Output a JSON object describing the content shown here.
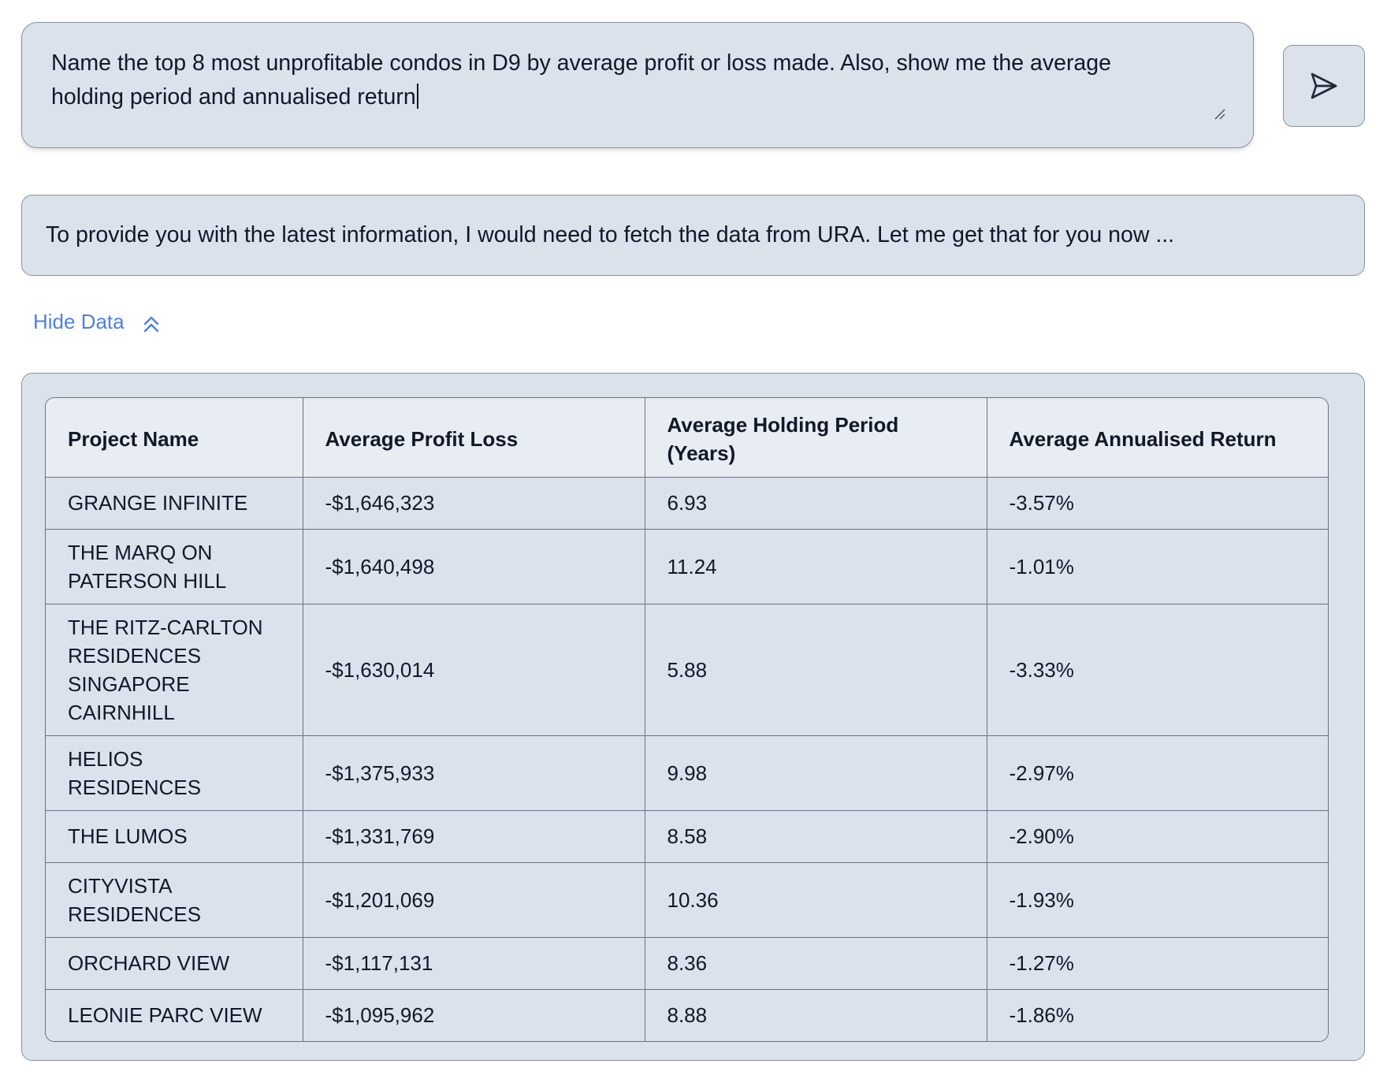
{
  "prompt": {
    "text": "Name the top 8 most unprofitable condos in D9 by average profit or loss made. Also, show me the average holding period and annualised return"
  },
  "send_button": {
    "icon": "send-icon"
  },
  "response": {
    "text": "To provide you with the latest information, I would need to fetch the data from URA. Let me get that for you now ..."
  },
  "toggle": {
    "label": "Hide Data",
    "icon": "double-chevron-up-icon"
  },
  "table": {
    "headers": [
      "Project Name",
      "Average Profit Loss",
      "Average Holding Period (Years)",
      "Average Annualised Return"
    ],
    "rows": [
      [
        "GRANGE INFINITE",
        "-$1,646,323",
        "6.93",
        "-3.57%"
      ],
      [
        "THE MARQ ON PATERSON HILL",
        "-$1,640,498",
        "11.24",
        "-1.01%"
      ],
      [
        "THE RITZ-CARLTON RESIDENCES SINGAPORE CAIRNHILL",
        "-$1,630,014",
        "5.88",
        "-3.33%"
      ],
      [
        "HELIOS RESIDENCES",
        "-$1,375,933",
        "9.98",
        "-2.97%"
      ],
      [
        "THE LUMOS",
        "-$1,331,769",
        "8.58",
        "-2.90%"
      ],
      [
        "CITYVISTA RESIDENCES",
        "-$1,201,069",
        "10.36",
        "-1.93%"
      ],
      [
        "ORCHARD VIEW",
        "-$1,117,131",
        "8.36",
        "-1.27%"
      ],
      [
        "LEONIE PARC VIEW",
        "-$1,095,962",
        "8.88",
        "-1.86%"
      ]
    ]
  },
  "colors": {
    "panel_bg": "#dbe2ec",
    "header_bg": "#e8ecf3",
    "border": "#8a929c",
    "link": "#4f7fe6",
    "text": "#111827"
  }
}
